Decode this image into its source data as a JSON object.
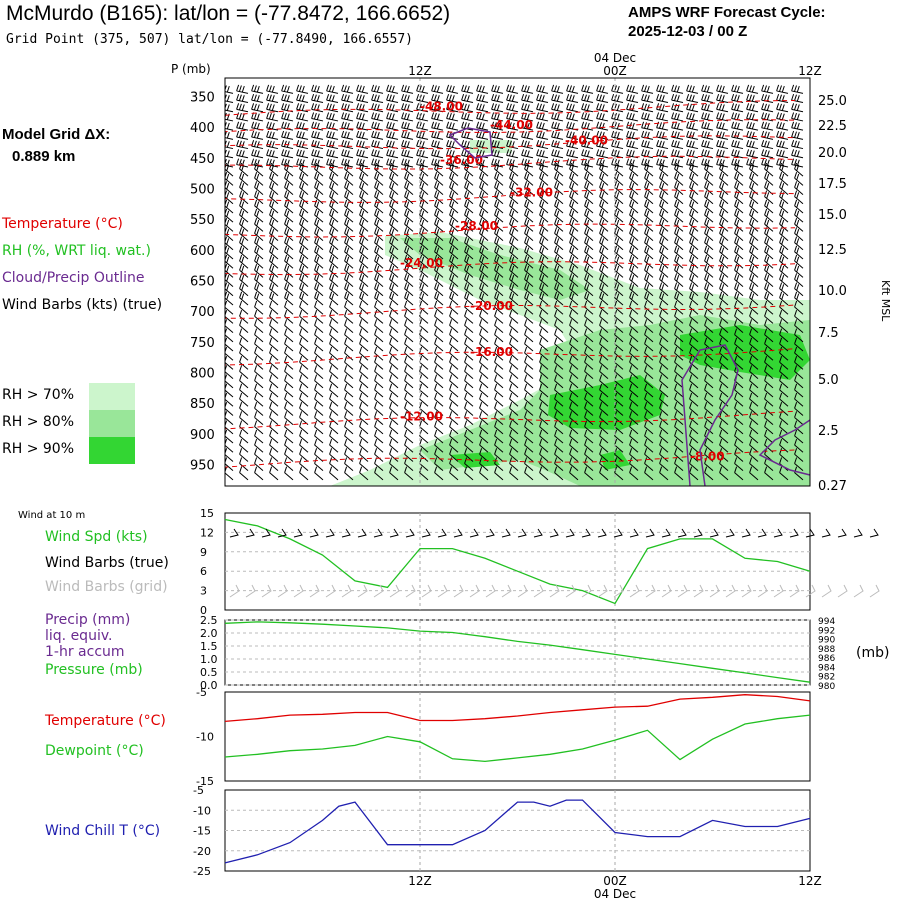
{
  "header": {
    "title": "McMurdo (B165):  lat/lon = (-77.8472, 166.6652)",
    "grid_point": "Grid Point (375, 507) lat/lon = (-77.8490, 166.6557)",
    "cycle_line1": "AMPS WRF Forecast Cycle:",
    "cycle_line2": "2025-12-03 / 00  Z"
  },
  "side": {
    "model_grid_label": "Model Grid ΔX:",
    "model_grid_value": "0.889 km",
    "temperature": "Temperature (°C)",
    "rh": "RH (%, WRT liq. wat.)",
    "cloud": "Cloud/Precip Outline",
    "barbs": "Wind Barbs (kts) (true)",
    "rh70": "RH > 70%",
    "rh80": "RH > 80%",
    "rh90": "RH > 90%"
  },
  "colors": {
    "temp": "#e00000",
    "rh70": "#ccf5cc",
    "rh80": "#99e699",
    "rh90": "#33d633",
    "cloud": "#6a2a90",
    "wind": "#22c022",
    "pressure": "#22c022",
    "chill": "#2020b0",
    "precip": "#6a2a90",
    "gridbarb": "#bbbbbb"
  },
  "chart_data": [
    {
      "type": "heatmap",
      "name": "time-height cross section",
      "ylabel": "P (mb)",
      "y2label": "Kft MSL",
      "pressure_ticks": [
        350,
        400,
        450,
        500,
        550,
        600,
        650,
        700,
        750,
        800,
        850,
        900,
        950
      ],
      "height_ticks": [
        "25.0",
        "22.5",
        "20.0",
        "17.5",
        "15.0",
        "12.5",
        "10.0",
        "7.5",
        "5.0",
        "2.5",
        "0.27"
      ],
      "time_top_labels": [
        "12Z",
        "00Z",
        "12Z"
      ],
      "date_top": "04 Dec",
      "temperature_contours": [
        {
          "label": "-48.00",
          "pressure": 365
        },
        {
          "label": "-44.00",
          "pressure": 395
        },
        {
          "label": "-40.00",
          "pressure": 420
        },
        {
          "label": "-36.00",
          "pressure": 452
        },
        {
          "label": "-32.00",
          "pressure": 505
        },
        {
          "label": "-28.00",
          "pressure": 560
        },
        {
          "label": "-24.00",
          "pressure": 620
        },
        {
          "label": "-20.00",
          "pressure": 690
        },
        {
          "label": "-16.00",
          "pressure": 765
        },
        {
          "label": "-12.00",
          "pressure": 870
        },
        {
          "label": "-8.00",
          "pressure": 935
        }
      ]
    },
    {
      "type": "line",
      "name": "wind speed at 10 m",
      "title": "Wind at 10 m",
      "label_speed": "Wind Spd (kts)",
      "label_true": "Wind Barbs (true)",
      "label_grid": "Wind Barbs (grid)",
      "ylim": [
        0,
        15
      ],
      "yticks": [
        "15",
        "12",
        "9",
        "6",
        "3",
        "0"
      ],
      "x_hours": [
        0,
        2,
        4,
        6,
        8,
        10,
        12,
        14,
        16,
        18,
        20,
        22,
        24,
        26,
        28,
        30,
        32,
        34,
        36
      ],
      "values": [
        14,
        13,
        11,
        8.5,
        4.5,
        3.5,
        9.5,
        9.5,
        8,
        6,
        4,
        3,
        1,
        9.5,
        11,
        11,
        8,
        7.5,
        6
      ]
    },
    {
      "type": "line",
      "name": "pressure",
      "label_precip1": "Precip (mm)",
      "label_precip2": "liq. equiv.",
      "label_precip3": "1-hr accum",
      "label_pressure": "Pressure (mb)",
      "y2label": "(mb)",
      "precip_ticks": [
        "2.5",
        "2.0",
        "1.5",
        "1.0",
        "0.5",
        "0.0"
      ],
      "pressure_ticks": [
        "994",
        "992",
        "990",
        "988",
        "986",
        "984",
        "982",
        "980"
      ],
      "ylim": [
        980,
        994
      ],
      "x_hours": [
        0,
        2,
        4,
        6,
        8,
        10,
        12,
        14,
        16,
        18,
        20,
        22,
        24,
        26,
        28,
        30,
        32,
        34,
        36
      ],
      "values": [
        993.3,
        993.6,
        993.4,
        993.1,
        992.7,
        992.3,
        991.6,
        991.3,
        990.4,
        989.4,
        988.6,
        987.6,
        986.6,
        985.6,
        984.6,
        983.6,
        982.6,
        981.6,
        980.6
      ]
    },
    {
      "type": "line",
      "name": "temperature and dewpoint",
      "label_temp": "Temperature (°C)",
      "label_dew": "Dewpoint (°C)",
      "yticks": [
        "-5",
        "-10",
        "-15"
      ],
      "ylim": [
        -15,
        -5
      ],
      "x_hours": [
        0,
        2,
        4,
        6,
        8,
        10,
        12,
        14,
        16,
        18,
        20,
        22,
        24,
        26,
        28,
        30,
        32,
        34,
        36
      ],
      "temperature": [
        -8.3,
        -8.0,
        -7.6,
        -7.5,
        -7.3,
        -7.3,
        -8.2,
        -8.2,
        -8.0,
        -7.7,
        -7.3,
        -7.0,
        -6.7,
        -6.6,
        -5.8,
        -5.6,
        -5.3,
        -5.5,
        -6.0
      ],
      "dewpoint": [
        -12.3,
        -12.0,
        -11.6,
        -11.4,
        -11.0,
        -10.0,
        -10.6,
        -12.5,
        -12.8,
        -12.4,
        -12.0,
        -11.4,
        -10.4,
        -9.3,
        -12.6,
        -10.3,
        -8.6,
        -8.0,
        -7.6
      ]
    },
    {
      "type": "line",
      "name": "wind chill",
      "label": "Wind Chill T (°C)",
      "yticks": [
        "-5",
        "-10",
        "-15",
        "-20",
        "-25"
      ],
      "ylim": [
        -25,
        -5
      ],
      "x_hours": [
        0,
        2,
        4,
        6,
        7,
        8,
        10,
        12,
        14,
        16,
        18,
        19,
        20,
        21,
        22,
        24,
        26,
        28,
        30,
        32,
        34,
        36
      ],
      "values": [
        -23,
        -21,
        -18,
        -12.5,
        -9,
        -8,
        -18.5,
        -18.5,
        -18.5,
        -15,
        -8,
        -8,
        -9,
        -7.5,
        -7.5,
        -15.5,
        -16.5,
        -16.5,
        -12.5,
        -14,
        -14,
        -12
      ],
      "time_bottom_labels": [
        "12Z",
        "00Z",
        "12Z"
      ],
      "date_bottom": "04 Dec"
    }
  ]
}
